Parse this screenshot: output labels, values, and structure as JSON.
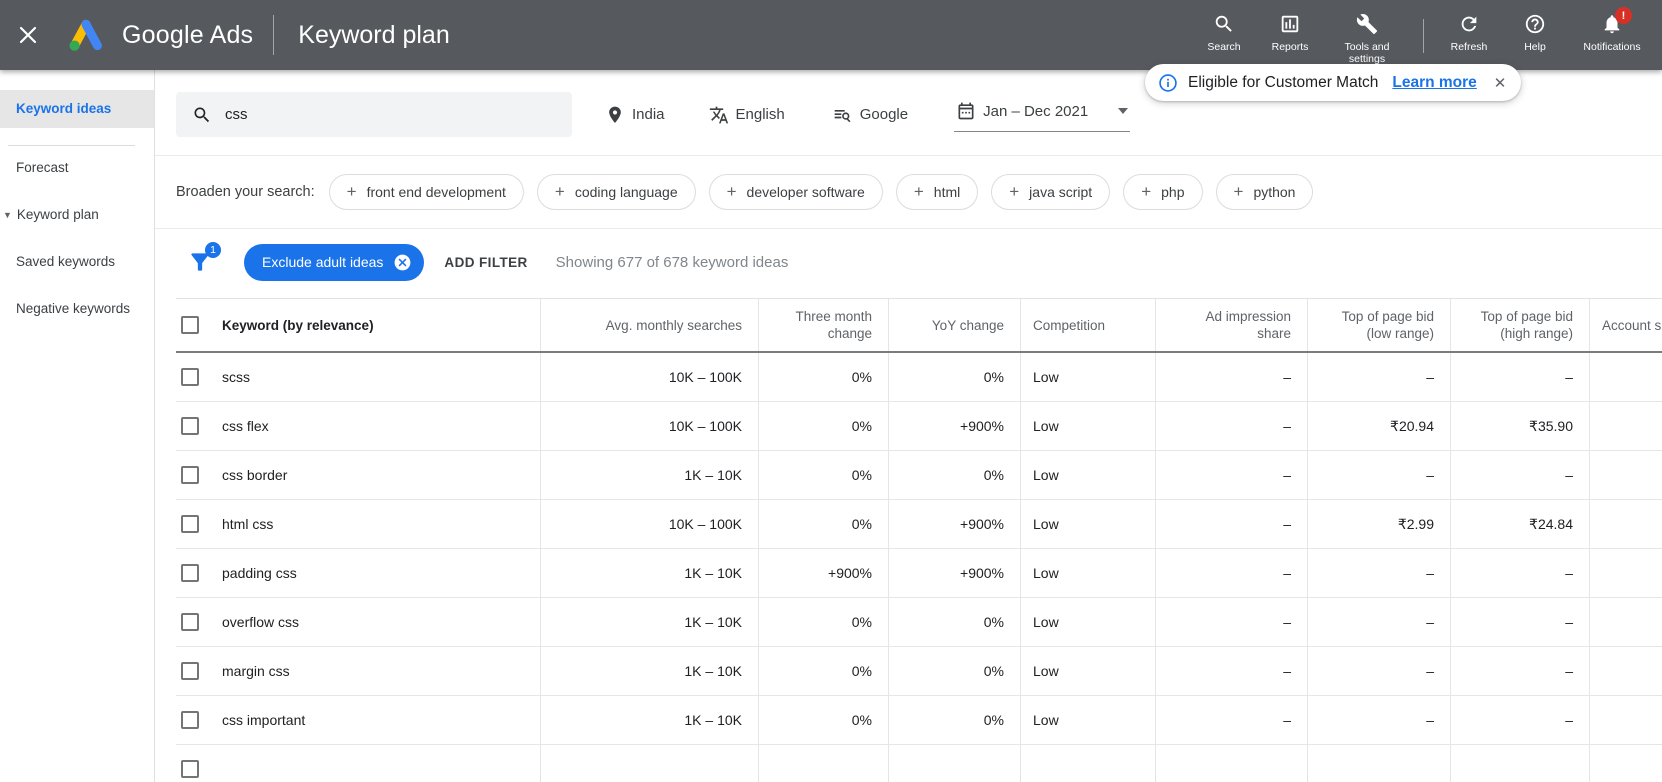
{
  "header": {
    "brand": "Google Ads",
    "page_title": "Keyword plan",
    "nav": [
      {
        "icon": "search-icon",
        "label": "Search"
      },
      {
        "icon": "reports-icon",
        "label": "Reports"
      },
      {
        "icon": "tools-icon",
        "label": "Tools and settings"
      },
      {
        "icon": "refresh-icon",
        "label": "Refresh"
      },
      {
        "icon": "help-icon",
        "label": "Help"
      },
      {
        "icon": "notifications-icon",
        "label": "Notifications",
        "badge": "!"
      }
    ]
  },
  "banner": {
    "message": "Eligible for Customer Match",
    "link_label": "Learn more"
  },
  "sidebar": {
    "items": [
      {
        "label": "Keyword ideas",
        "selected": true
      },
      {
        "label": "Forecast"
      },
      {
        "label": "Keyword plan",
        "expanded": true
      },
      {
        "label": "Saved keywords"
      },
      {
        "label": "Negative keywords"
      }
    ]
  },
  "search_bar": {
    "query": "css",
    "location": "India",
    "language": "English",
    "network": "Google",
    "date_range": "Jan – Dec 2021"
  },
  "broaden": {
    "label": "Broaden your search:",
    "chips": [
      "front end development",
      "coding language",
      "developer software",
      "html",
      "java script",
      "php",
      "python"
    ]
  },
  "filter_bar": {
    "filter_count": "1",
    "active_filter": "Exclude adult ideas",
    "add_filter_label": "ADD FILTER",
    "status": "Showing 677 of 678 keyword ideas"
  },
  "table": {
    "columns": [
      "Keyword (by relevance)",
      "Avg. monthly searches",
      "Three month change",
      "YoY change",
      "Competition",
      "Ad impression share",
      "Top of page bid (low range)",
      "Top of page bid (high range)",
      "Account s"
    ],
    "rows": [
      {
        "keyword": "scss",
        "avg_monthly_searches": "10K – 100K",
        "three_month_change": "0%",
        "yoy_change": "0%",
        "competition": "Low",
        "ad_impression_share": "–",
        "top_bid_low": "–",
        "top_bid_high": "–"
      },
      {
        "keyword": "css flex",
        "avg_monthly_searches": "10K – 100K",
        "three_month_change": "0%",
        "yoy_change": "+900%",
        "competition": "Low",
        "ad_impression_share": "–",
        "top_bid_low": "₹20.94",
        "top_bid_high": "₹35.90"
      },
      {
        "keyword": "css border",
        "avg_monthly_searches": "1K – 10K",
        "three_month_change": "0%",
        "yoy_change": "0%",
        "competition": "Low",
        "ad_impression_share": "–",
        "top_bid_low": "–",
        "top_bid_high": "–"
      },
      {
        "keyword": "html css",
        "avg_monthly_searches": "10K – 100K",
        "three_month_change": "0%",
        "yoy_change": "+900%",
        "competition": "Low",
        "ad_impression_share": "–",
        "top_bid_low": "₹2.99",
        "top_bid_high": "₹24.84"
      },
      {
        "keyword": "padding css",
        "avg_monthly_searches": "1K – 10K",
        "three_month_change": "+900%",
        "yoy_change": "+900%",
        "competition": "Low",
        "ad_impression_share": "–",
        "top_bid_low": "–",
        "top_bid_high": "–"
      },
      {
        "keyword": "overflow css",
        "avg_monthly_searches": "1K – 10K",
        "three_month_change": "0%",
        "yoy_change": "0%",
        "competition": "Low",
        "ad_impression_share": "–",
        "top_bid_low": "–",
        "top_bid_high": "–"
      },
      {
        "keyword": "margin css",
        "avg_monthly_searches": "1K – 10K",
        "three_month_change": "0%",
        "yoy_change": "0%",
        "competition": "Low",
        "ad_impression_share": "–",
        "top_bid_low": "–",
        "top_bid_high": "–"
      },
      {
        "keyword": "css important",
        "avg_monthly_searches": "1K – 10K",
        "three_month_change": "0%",
        "yoy_change": "0%",
        "competition": "Low",
        "ad_impression_share": "–",
        "top_bid_low": "–",
        "top_bid_high": "–"
      }
    ]
  },
  "colors": {
    "accent_blue": "#1a73e8",
    "header_gray": "#56595d",
    "badge_red": "#d93025",
    "logo_yellow": "#fbbc04",
    "logo_green": "#34a853",
    "logo_blue": "#4285f4"
  }
}
